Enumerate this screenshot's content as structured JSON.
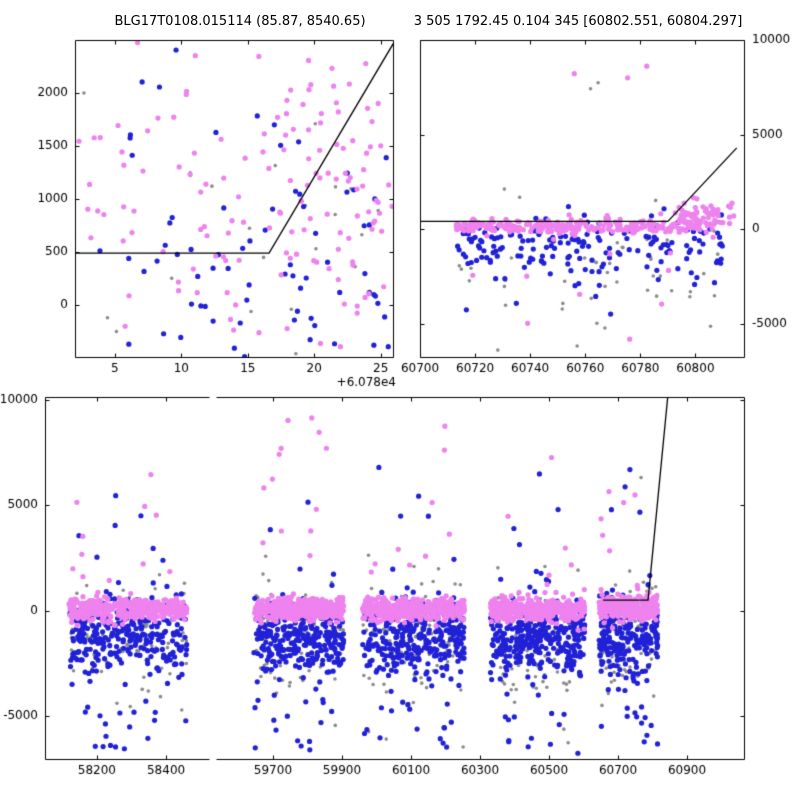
{
  "header": {
    "title_left": "BLG17T0108.015114 (85.87, 8540.65)",
    "title_right": "3 505 1792.45 0.104 345 [60802.551, 60804.297]"
  },
  "chart_meta": {
    "seed": 7,
    "colors": {
      "pink": "#ee82ee",
      "blue": "#2121d6",
      "gray": "#8c8c8c",
      "line": "#000000"
    },
    "marker_radius": {
      "pink": 2.6,
      "blue": 2.6,
      "gray": 1.8
    }
  },
  "chart_data": {
    "type": "scatter",
    "title": "BLG17T0108.015114 (85.87, 8540.65)",
    "subtitle": "3 505 1792.45 0.104 345 [60802.551, 60804.297]",
    "description": "Light curve of event BLG17T0108.015114: flux vs epoch with a piecewise model line (flat baseline then steep rise near 60800). Three views: zoom near peak (x offset +6.078e4), current season 60700-60810, and full baseline with broken x-axis. Pink, blue and gray scatter series.",
    "grid": false,
    "legend": null,
    "panels": [
      {
        "id": "top-left",
        "xlim": [
          2.0,
          26.0
        ],
        "ylim": [
          -500,
          2500
        ],
        "xticks": [
          5,
          10,
          15,
          20,
          25
        ],
        "xtick_labels": [
          "5",
          "10",
          "15",
          "20",
          "25"
        ],
        "x_offset_text": "+6.078e4",
        "yticks": [
          0,
          500,
          1000,
          1500,
          2000
        ],
        "ytick_labels": [
          "0",
          "500",
          "1000",
          "1500",
          "2000"
        ],
        "ytick_side": "left",
        "spines": [
          "left",
          "right",
          "top",
          "bottom"
        ],
        "model_line": [
          [
            2.0,
            490
          ],
          [
            16.6,
            490
          ],
          [
            26.2,
            2520
          ]
        ],
        "clusters": [
          {
            "color": "gray",
            "n": 26,
            "x": [
              2.4,
              25.6
            ],
            "mean": 250,
            "sd": 750,
            "tailFrac": 0,
            "tail": [
              0,
              0
            ]
          },
          {
            "color": "blue",
            "n": 82,
            "x": [
              2.2,
              25.9
            ],
            "mean": 350,
            "sd": 680,
            "tailFrac": 0.1,
            "tail": [
              1300,
              2350
            ]
          },
          {
            "color": "pink",
            "n": 118,
            "x": [
              2.2,
              25.9
            ],
            "mean": 800,
            "sd": 650,
            "tailFrac": 0.05,
            "tail": [
              2000,
              2430
            ]
          },
          {
            "color": "pink",
            "n": 28,
            "x": [
              16.8,
              25.7
            ],
            "mean": 1500,
            "sd": 460,
            "tailFrac": 0,
            "tail": [
              0,
              0
            ]
          }
        ]
      },
      {
        "id": "top-right",
        "xlim": [
          60700,
          60818
        ],
        "ylim": [
          -6800,
          10000
        ],
        "xticks": [
          60700,
          60720,
          60740,
          60760,
          60780,
          60800
        ],
        "xtick_labels": [
          "60700",
          "60720",
          "60740",
          "60760",
          "60780",
          "60800"
        ],
        "yticks": [
          -5000,
          0,
          5000,
          10000
        ],
        "ytick_labels": [
          "-5000",
          "0",
          "5000",
          "10000"
        ],
        "ytick_side": "right",
        "spines": [
          "left",
          "right",
          "top",
          "bottom"
        ],
        "model_line": [
          [
            60700,
            420
          ],
          [
            60790,
            420
          ],
          [
            60815,
            4300
          ]
        ],
        "clusters": [
          {
            "color": "gray",
            "n": 52,
            "x": [
              60713,
              60810
            ],
            "mean": -1700,
            "sd": 1700,
            "tailFrac": 0.05,
            "tail": [
              -6700,
              -4500
            ]
          },
          {
            "color": "gray",
            "n": 2,
            "x": [
              60750,
              60775
            ],
            "mean": 7000,
            "sd": 500,
            "tailFrac": 0,
            "tail": [
              0,
              0
            ]
          },
          {
            "color": "blue",
            "n": 185,
            "x": [
              60713,
              60810
            ],
            "mean": -850,
            "sd": 750,
            "tailFrac": 0.05,
            "tail": [
              -4600,
              -2500
            ]
          },
          {
            "color": "pink",
            "n": 290,
            "x": [
              60713,
              60808
            ],
            "mean": 180,
            "sd": 190,
            "tailFrac": 0.02,
            "tail": [
              -1600,
              1400
            ]
          },
          {
            "color": "pink",
            "n": 58,
            "x": [
              60792,
              60814
            ],
            "mean": 700,
            "sd": 380,
            "tailFrac": 0,
            "tail": [
              0,
              0
            ]
          },
          {
            "color": "pink",
            "n": 10,
            "x": [
              60718,
              60808
            ],
            "mean": -3200,
            "sd": 1900,
            "tailFrac": 0,
            "tail": [
              0,
              0
            ]
          },
          {
            "color": "pink",
            "n": 3,
            "x": [
              60756,
              60788
            ],
            "mean": 7800,
            "sd": 800,
            "tailFrac": 0,
            "tail": [
              0,
              0
            ]
          }
        ]
      },
      {
        "id": "bottom-left",
        "xlim": [
          58050,
          58527
        ],
        "ylim": [
          -7085,
          10140
        ],
        "xticks": [
          58200,
          58400
        ],
        "xtick_labels": [
          "58200",
          "58400"
        ],
        "yticks": [
          -5000,
          0,
          5000,
          10000
        ],
        "ytick_labels": [
          "-5000",
          "0",
          "5000",
          "10000"
        ],
        "ytick_side": "left",
        "spines": [
          "left",
          "top",
          "bottom"
        ],
        "model_line": null,
        "clusters": [
          {
            "color": "gray",
            "n": 85,
            "x": [
              58120,
              58460
            ],
            "mean": -1300,
            "sd": 1500,
            "tailFrac": 0.04,
            "tail": [
              -6500,
              6500
            ]
          },
          {
            "color": "blue",
            "n": 310,
            "x": [
              58120,
              58460
            ],
            "mean": -1250,
            "sd": 900,
            "tailFrac": 0.04,
            "tail": [
              -6800,
              -3800
            ]
          },
          {
            "color": "blue",
            "n": 7,
            "x": [
              58140,
              58440
            ],
            "mean": 3600,
            "sd": 1400,
            "tailFrac": 0,
            "tail": [
              0,
              0
            ]
          },
          {
            "color": "pink",
            "n": 400,
            "x": [
              58120,
              58460
            ],
            "mean": 80,
            "sd": 260,
            "tailFrac": 0.025,
            "tail": [
              700,
              7000
            ]
          }
        ]
      },
      {
        "id": "bottom-right",
        "xlim": [
          59535,
          61068
        ],
        "ylim": [
          -7085,
          10140
        ],
        "xticks": [
          59700,
          59900,
          60100,
          60300,
          60500,
          60700,
          60900
        ],
        "xtick_labels": [
          "59700",
          "59900",
          "60100",
          "60300",
          "60500",
          "60700",
          "60900"
        ],
        "yticks": [
          -5000,
          0,
          5000,
          10000
        ],
        "ytick_labels": [
          "-5000",
          "0",
          "5000",
          "10000"
        ],
        "ytick_side": "none",
        "spines": [
          "right",
          "top",
          "bottom"
        ],
        "model_line": [
          [
            60657,
            500
          ],
          [
            60787,
            500
          ],
          [
            60845,
            10300
          ]
        ],
        "clusters": [
          {
            "color": "gray",
            "n": 85,
            "x": [
              59645,
              59905
            ],
            "mean": -1300,
            "sd": 1500,
            "tailFrac": 0.04,
            "tail": [
              -6500,
              5200
            ]
          },
          {
            "color": "blue",
            "n": 320,
            "x": [
              59645,
              59905
            ],
            "mean": -1250,
            "sd": 900,
            "tailFrac": 0.04,
            "tail": [
              -6800,
              -3800
            ]
          },
          {
            "color": "blue",
            "n": 6,
            "x": [
              59660,
              59890
            ],
            "mean": 3800,
            "sd": 1700,
            "tailFrac": 0,
            "tail": [
              0,
              0
            ]
          },
          {
            "color": "pink",
            "n": 420,
            "x": [
              59645,
              59905
            ],
            "mean": 80,
            "sd": 260,
            "tailFrac": 0.02,
            "tail": [
              700,
              9200
            ]
          },
          {
            "color": "gray",
            "n": 90,
            "x": [
              59960,
              60255
            ],
            "mean": -1300,
            "sd": 1500,
            "tailFrac": 0.04,
            "tail": [
              -6500,
              5200
            ]
          },
          {
            "color": "blue",
            "n": 340,
            "x": [
              59960,
              60255
            ],
            "mean": -1250,
            "sd": 900,
            "tailFrac": 0.04,
            "tail": [
              -6800,
              -3800
            ]
          },
          {
            "color": "blue",
            "n": 6,
            "x": [
              59975,
              60240
            ],
            "mean": 3600,
            "sd": 1500,
            "tailFrac": 0,
            "tail": [
              0,
              0
            ]
          },
          {
            "color": "pink",
            "n": 440,
            "x": [
              59960,
              60255
            ],
            "mean": 80,
            "sd": 260,
            "tailFrac": 0.02,
            "tail": [
              700,
              8800
            ]
          },
          {
            "color": "gray",
            "n": 85,
            "x": [
              60330,
              60605
            ],
            "mean": -1300,
            "sd": 1500,
            "tailFrac": 0.04,
            "tail": [
              -6500,
              5200
            ]
          },
          {
            "color": "blue",
            "n": 330,
            "x": [
              60330,
              60605
            ],
            "mean": -1250,
            "sd": 900,
            "tailFrac": 0.04,
            "tail": [
              -6800,
              -3800
            ]
          },
          {
            "color": "blue",
            "n": 5,
            "x": [
              60345,
              60590
            ],
            "mean": 3800,
            "sd": 1600,
            "tailFrac": 0,
            "tail": [
              0,
              0
            ]
          },
          {
            "color": "pink",
            "n": 420,
            "x": [
              60330,
              60605
            ],
            "mean": 80,
            "sd": 260,
            "tailFrac": 0.02,
            "tail": [
              700,
              7800
            ]
          },
          {
            "color": "gray",
            "n": 60,
            "x": [
              60645,
              60815
            ],
            "mean": -1400,
            "sd": 1600,
            "tailFrac": 0.05,
            "tail": [
              -6500,
              7000
            ]
          },
          {
            "color": "blue",
            "n": 240,
            "x": [
              60645,
              60815
            ],
            "mean": -1300,
            "sd": 950,
            "tailFrac": 0.04,
            "tail": [
              -6800,
              -3800
            ]
          },
          {
            "color": "blue",
            "n": 4,
            "x": [
              60660,
              60800
            ],
            "mean": 6500,
            "sd": 2200,
            "tailFrac": 0,
            "tail": [
              0,
              0
            ]
          },
          {
            "color": "pink",
            "n": 300,
            "x": [
              60645,
              60815
            ],
            "mean": 120,
            "sd": 280,
            "tailFrac": 0.03,
            "tail": [
              800,
              7200
            ]
          }
        ]
      }
    ]
  }
}
